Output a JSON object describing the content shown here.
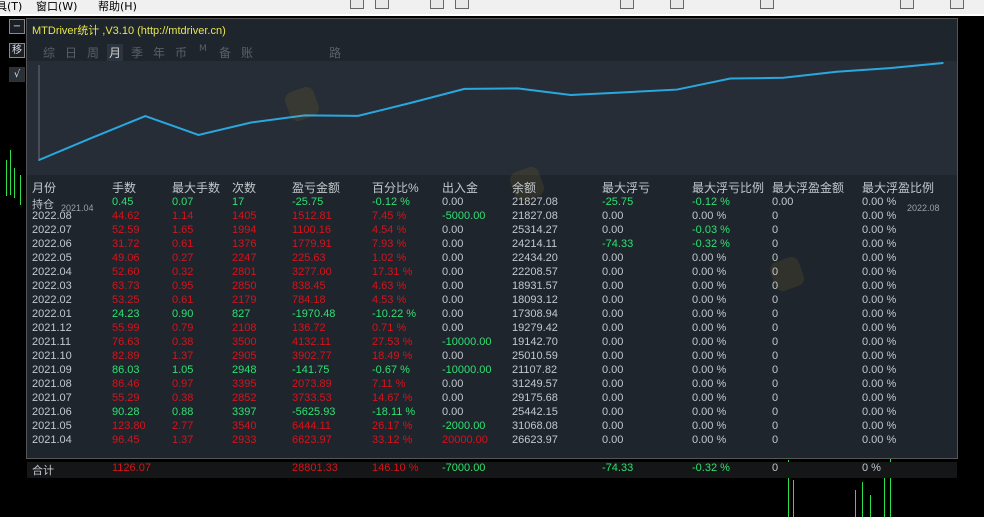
{
  "menu": {
    "items": [
      "具(T)",
      "窗口(W)",
      "帮助(H)"
    ]
  },
  "side_buttons": {
    "minimize": "−",
    "move": "移",
    "check": "√"
  },
  "window": {
    "title": "MTDriver统计 ,V3.10 (http://mtdriver.cn)",
    "tabs": [
      {
        "label": "综",
        "active": false
      },
      {
        "label": "日",
        "active": false
      },
      {
        "label": "周",
        "active": false
      },
      {
        "label": "月",
        "active": true
      },
      {
        "label": "季",
        "active": false
      },
      {
        "label": "年",
        "active": false
      },
      {
        "label": "币",
        "active": false
      },
      {
        "label": "M",
        "active": false
      },
      {
        "label": "备",
        "active": false
      },
      {
        "label": "账户",
        "active": false
      },
      {
        "label": "路径",
        "active": false
      }
    ]
  },
  "chart_data": {
    "type": "line",
    "x": [
      "2021.04",
      "2021.05",
      "2021.06",
      "2021.07",
      "2021.08",
      "2021.09",
      "2021.10",
      "2021.11",
      "2021.12",
      "2022.01",
      "2022.02",
      "2022.03",
      "2022.04",
      "2022.05",
      "2022.06",
      "2022.07",
      "2022.08",
      "持仓"
    ],
    "x_tick_labels": [
      "2021.04",
      "2022.08"
    ],
    "series": [
      {
        "values": [
          0,
          6623.97,
          13068.08,
          7442.15,
          11175.68,
          13249.57,
          13107.82,
          17010.59,
          21142.7,
          21279.42,
          19308.94,
          20093.12,
          20931.57,
          24208.57,
          24434.2,
          26214.11,
          27314.27,
          28827.08
        ],
        "color": "#29a8e0"
      }
    ],
    "grid": false
  },
  "colors": {
    "profit": "#d4141c",
    "loss": "#2fe070",
    "neutral": "#c4c8cc",
    "title": "#e6e64a",
    "line": "#29a8e0"
  },
  "table": {
    "headers": [
      "月份",
      "手数",
      "最大手数",
      "次数",
      "盈亏金额",
      "百分比%",
      "出入金",
      "余额",
      "最大浮亏",
      "最大浮亏比例",
      "最大浮盈金额",
      "最大浮盈比例"
    ],
    "rows": [
      {
        "cells": [
          "持仓",
          "0.45",
          "0.07",
          "17",
          "-25.75",
          "-0.12 %",
          "0.00",
          "21827.08",
          "-25.75",
          "-0.12 %",
          "0.00",
          "0.00 %"
        ],
        "colors": [
          "n",
          "g",
          "g",
          "g",
          "g",
          "g",
          "n",
          "n",
          "g",
          "g",
          "n",
          "n"
        ]
      },
      {
        "cells": [
          "2022.08",
          "44.62",
          "1.14",
          "1405",
          "1512.81",
          "7.45 %",
          "-5000.00",
          "21827.08",
          "0.00",
          "0.00 %",
          "0",
          "0.00 %"
        ],
        "colors": [
          "n",
          "r",
          "r",
          "r",
          "r",
          "r",
          "g",
          "n",
          "n",
          "n",
          "n",
          "n"
        ]
      },
      {
        "cells": [
          "2022.07",
          "52.59",
          "1.65",
          "1994",
          "1100.16",
          "4.54 %",
          "0.00",
          "25314.27",
          "0.00",
          "-0.03 %",
          "0",
          "0.00 %"
        ],
        "colors": [
          "n",
          "r",
          "r",
          "r",
          "r",
          "r",
          "n",
          "n",
          "n",
          "g",
          "n",
          "n"
        ]
      },
      {
        "cells": [
          "2022.06",
          "31.72",
          "0.61",
          "1376",
          "1779.91",
          "7.93 %",
          "0.00",
          "24214.11",
          "-74.33",
          "-0.32 %",
          "0",
          "0.00 %"
        ],
        "colors": [
          "n",
          "r",
          "r",
          "r",
          "r",
          "r",
          "n",
          "n",
          "g",
          "g",
          "n",
          "n"
        ]
      },
      {
        "cells": [
          "2022.05",
          "49.06",
          "0.27",
          "2247",
          "225.63",
          "1.02 %",
          "0.00",
          "22434.20",
          "0.00",
          "0.00 %",
          "0",
          "0.00 %"
        ],
        "colors": [
          "n",
          "r",
          "r",
          "r",
          "r",
          "r",
          "n",
          "n",
          "n",
          "n",
          "n",
          "n"
        ]
      },
      {
        "cells": [
          "2022.04",
          "52.60",
          "0.32",
          "2801",
          "3277.00",
          "17.31 %",
          "0.00",
          "22208.57",
          "0.00",
          "0.00 %",
          "0",
          "0.00 %"
        ],
        "colors": [
          "n",
          "r",
          "r",
          "r",
          "r",
          "r",
          "n",
          "n",
          "n",
          "n",
          "n",
          "n"
        ]
      },
      {
        "cells": [
          "2022.03",
          "63.73",
          "0.95",
          "2850",
          "838.45",
          "4.63 %",
          "0.00",
          "18931.57",
          "0.00",
          "0.00 %",
          "0",
          "0.00 %"
        ],
        "colors": [
          "n",
          "r",
          "r",
          "r",
          "r",
          "r",
          "n",
          "n",
          "n",
          "n",
          "n",
          "n"
        ]
      },
      {
        "cells": [
          "2022.02",
          "53.25",
          "0.61",
          "2179",
          "784.18",
          "4.53 %",
          "0.00",
          "18093.12",
          "0.00",
          "0.00 %",
          "0",
          "0.00 %"
        ],
        "colors": [
          "n",
          "r",
          "r",
          "r",
          "r",
          "r",
          "n",
          "n",
          "n",
          "n",
          "n",
          "n"
        ]
      },
      {
        "cells": [
          "2022.01",
          "24.23",
          "0.90",
          "827",
          "-1970.48",
          "-10.22 %",
          "0.00",
          "17308.94",
          "0.00",
          "0.00 %",
          "0",
          "0.00 %"
        ],
        "colors": [
          "n",
          "g",
          "g",
          "g",
          "g",
          "g",
          "n",
          "n",
          "n",
          "n",
          "n",
          "n"
        ]
      },
      {
        "cells": [
          "2021.12",
          "55.99",
          "0.79",
          "2108",
          "136.72",
          "0.71 %",
          "0.00",
          "19279.42",
          "0.00",
          "0.00 %",
          "0",
          "0.00 %"
        ],
        "colors": [
          "n",
          "r",
          "r",
          "r",
          "r",
          "r",
          "n",
          "n",
          "n",
          "n",
          "n",
          "n"
        ]
      },
      {
        "cells": [
          "2021.11",
          "76.63",
          "0.38",
          "3500",
          "4132.11",
          "27.53 %",
          "-10000.00",
          "19142.70",
          "0.00",
          "0.00 %",
          "0",
          "0.00 %"
        ],
        "colors": [
          "n",
          "r",
          "r",
          "r",
          "r",
          "r",
          "g",
          "n",
          "n",
          "n",
          "n",
          "n"
        ]
      },
      {
        "cells": [
          "2021.10",
          "82.89",
          "1.37",
          "2905",
          "3902.77",
          "18.49 %",
          "0.00",
          "25010.59",
          "0.00",
          "0.00 %",
          "0",
          "0.00 %"
        ],
        "colors": [
          "n",
          "r",
          "r",
          "r",
          "r",
          "r",
          "n",
          "n",
          "n",
          "n",
          "n",
          "n"
        ]
      },
      {
        "cells": [
          "2021.09",
          "86.03",
          "1.05",
          "2948",
          "-141.75",
          "-0.67 %",
          "-10000.00",
          "21107.82",
          "0.00",
          "0.00 %",
          "0",
          "0.00 %"
        ],
        "colors": [
          "n",
          "g",
          "g",
          "g",
          "g",
          "g",
          "g",
          "n",
          "n",
          "n",
          "n",
          "n"
        ]
      },
      {
        "cells": [
          "2021.08",
          "86.46",
          "0.97",
          "3395",
          "2073.89",
          "7.11 %",
          "0.00",
          "31249.57",
          "0.00",
          "0.00 %",
          "0",
          "0.00 %"
        ],
        "colors": [
          "n",
          "r",
          "r",
          "r",
          "r",
          "r",
          "n",
          "n",
          "n",
          "n",
          "n",
          "n"
        ]
      },
      {
        "cells": [
          "2021.07",
          "55.29",
          "0.38",
          "2852",
          "3733.53",
          "14.67 %",
          "0.00",
          "29175.68",
          "0.00",
          "0.00 %",
          "0",
          "0.00 %"
        ],
        "colors": [
          "n",
          "r",
          "r",
          "r",
          "r",
          "r",
          "n",
          "n",
          "n",
          "n",
          "n",
          "n"
        ]
      },
      {
        "cells": [
          "2021.06",
          "90.28",
          "0.88",
          "3397",
          "-5625.93",
          "-18.11 %",
          "0.00",
          "25442.15",
          "0.00",
          "0.00 %",
          "0",
          "0.00 %"
        ],
        "colors": [
          "n",
          "g",
          "g",
          "g",
          "g",
          "g",
          "n",
          "n",
          "n",
          "n",
          "n",
          "n"
        ]
      },
      {
        "cells": [
          "2021.05",
          "123.80",
          "2.77",
          "3540",
          "6444.11",
          "26.17 %",
          "-2000.00",
          "31068.08",
          "0.00",
          "0.00 %",
          "0",
          "0.00 %"
        ],
        "colors": [
          "n",
          "r",
          "r",
          "r",
          "r",
          "r",
          "g",
          "n",
          "n",
          "n",
          "n",
          "n"
        ]
      },
      {
        "cells": [
          "2021.04",
          "96.45",
          "1.37",
          "2933",
          "6623.97",
          "33.12 %",
          "20000.00",
          "26623.97",
          "0.00",
          "0.00 %",
          "0",
          "0.00 %"
        ],
        "colors": [
          "n",
          "r",
          "r",
          "r",
          "r",
          "r",
          "r",
          "n",
          "n",
          "n",
          "n",
          "n"
        ]
      }
    ],
    "total": {
      "cells": [
        "合计",
        "1126.07",
        "",
        "",
        "28801.33",
        "146.10 %",
        "-7000.00",
        "",
        "-74.33",
        "-0.32 %",
        "0",
        "0 %"
      ],
      "colors": [
        "n",
        "r",
        "n",
        "n",
        "r",
        "r",
        "g",
        "n",
        "g",
        "g",
        "n",
        "n"
      ]
    }
  }
}
